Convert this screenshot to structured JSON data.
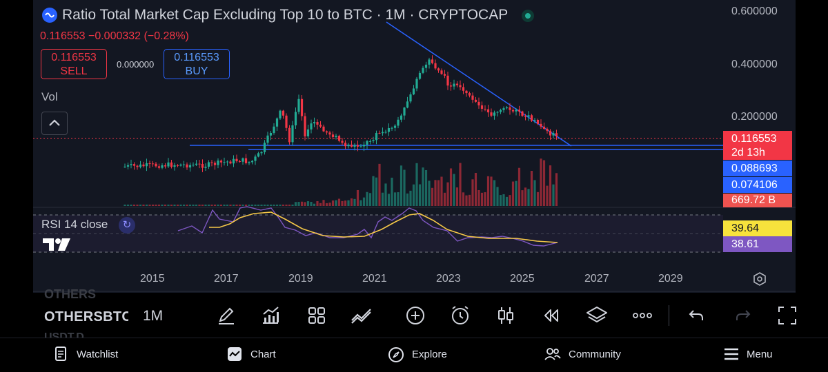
{
  "header": {
    "title": "Ratio Total Market Cap Excluding Top 10 to BTC · 1M · CRYPTOCAP",
    "price_line": "0.116553  −0.000332 (−0.28%)",
    "sell": {
      "price": "0.116553",
      "label": "SELL"
    },
    "buy": {
      "price": "0.116553",
      "label": "BUY"
    },
    "spread": "0.000000",
    "vol_label": "Vol"
  },
  "price_axis": {
    "labels": [
      "0.600000",
      "0.400000",
      "0.200000"
    ],
    "tags": {
      "last_price": "0.116553",
      "countdown": "2d 13h",
      "level_1": "0.088693",
      "level_2": "0.074106",
      "volume": "669.72 B"
    }
  },
  "rsi": {
    "label": "RSI 14 close",
    "value": "39.64",
    "ma_value": "38.61"
  },
  "time_axis": {
    "years": [
      "2015",
      "2017",
      "2019",
      "2021",
      "2023",
      "2025",
      "2027",
      "2029"
    ]
  },
  "toolbar": {
    "symbol_prev": "OTHERS",
    "symbol": "OTHERSBTC",
    "symbol_next": "USDT.D",
    "interval": "1M",
    "tools": [
      "drawing-icon",
      "indicators-icon",
      "templates-icon",
      "compare-icon",
      "add-icon",
      "alert-icon",
      "candles-icon",
      "replay-icon",
      "layers-icon",
      "more-icon",
      "undo-icon",
      "redo-icon",
      "fullscreen-icon"
    ]
  },
  "nav": {
    "items": [
      {
        "label": "Watchlist",
        "icon": "watchlist-icon"
      },
      {
        "label": "Chart",
        "icon": "chart-icon"
      },
      {
        "label": "Explore",
        "icon": "explore-icon"
      },
      {
        "label": "Community",
        "icon": "community-icon"
      },
      {
        "label": "Menu",
        "icon": "menu-icon"
      }
    ]
  },
  "colors": {
    "up": "#22ab94",
    "down": "#f23645",
    "trendline": "#2962ff",
    "rsi": "#7e57c2",
    "rsi_ma": "#f7c948",
    "background": "#131722"
  }
}
